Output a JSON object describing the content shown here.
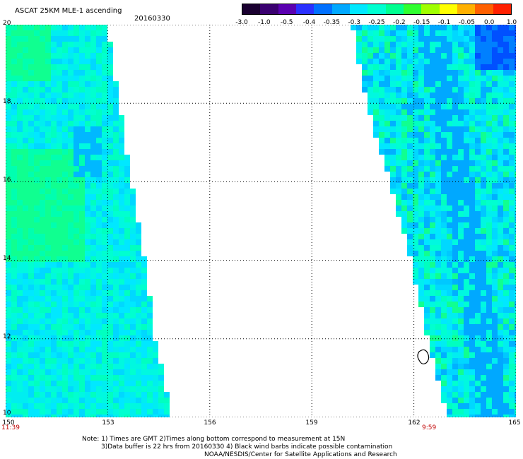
{
  "header": {
    "title": "ASCAT 25KM MLE-1 ascending",
    "date": "20160330"
  },
  "colorbar": {
    "labels": [
      "-3.0",
      "-1.0",
      "-0.5",
      "-0.4",
      "-0.35",
      "-0.3",
      "-0.25",
      "-0.2",
      "-0.15",
      "-0.1",
      "-0.05",
      "0.0",
      "1.0"
    ],
    "colors": [
      "#1a0030",
      "#3a0070",
      "#5a00b0",
      "#2a30ff",
      "#0070ff",
      "#00a8ff",
      "#00e8ff",
      "#00ffd0",
      "#00ff90",
      "#30ff30",
      "#a0ff00",
      "#ffff00",
      "#ffb000",
      "#ff6000",
      "#ff2000"
    ]
  },
  "axes": {
    "y_labels": [
      "20",
      "18",
      "16",
      "14",
      "12",
      "10"
    ],
    "x_labels": [
      "150",
      "153",
      "156",
      "159",
      "162",
      "165"
    ],
    "left_time": "11:39",
    "right_time": "9:59"
  },
  "footer": {
    "line1": "Note: 1) Times are GMT 2)Times along bottom correspond to measurement at 15N",
    "line2": "3)Data buffer is 22 hrs from 20160330 4) Black wind barbs indicate possible contamination",
    "line3": "NOAA/NESDIS/Center for Satellite Applications and Research"
  },
  "swaths": {
    "lon_range": [
      150,
      165
    ],
    "lat_range": [
      10,
      20
    ],
    "left_swath_east_edge_lon": [
      [
        20,
        153.0
      ],
      [
        16,
        153.7
      ],
      [
        14,
        154.1
      ],
      [
        12,
        154.4
      ],
      [
        10,
        154.9
      ]
    ],
    "right_swath_west_edge_lon": [
      [
        20,
        160.2
      ],
      [
        18,
        160.6
      ],
      [
        16,
        161.3
      ],
      [
        14,
        161.9
      ],
      [
        12,
        162.4
      ],
      [
        10,
        163.0
      ]
    ]
  }
}
